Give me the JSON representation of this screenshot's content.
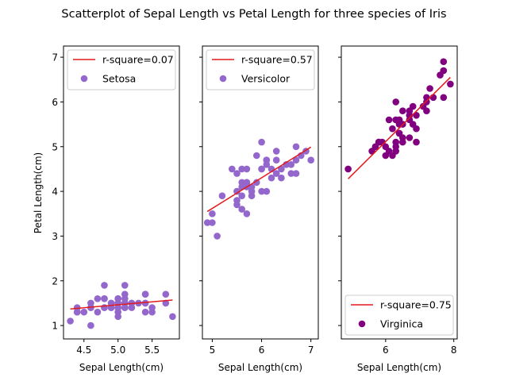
{
  "chart_data": {
    "title": "Scatterplot of Sepal Length vs Petal Length for three species of Iris",
    "type": "scatter",
    "ylabel": "Petal Length(cm)",
    "ylim": [
      0.7,
      7.25
    ],
    "yticks": [
      1,
      2,
      3,
      4,
      5,
      6,
      7
    ],
    "sharey": true,
    "grid": false,
    "panels": [
      {
        "id": "setosa",
        "xlabel": "Sepal Length(cm)",
        "xlim": [
          4.2,
          5.9
        ],
        "xticks": [
          4.5,
          5.0,
          5.5
        ],
        "xtick_labels": [
          "4.5",
          "5.0",
          "5.5"
        ],
        "legend_loc": "upper left",
        "fit_label": "r-square=0.07",
        "fit": {
          "x": [
            4.3,
            5.8
          ],
          "y": [
            1.37,
            1.57
          ]
        },
        "series": {
          "name": "Setosa",
          "color": "#9467cd",
          "x": [
            5.1,
            4.9,
            4.7,
            4.6,
            5.0,
            5.4,
            4.6,
            5.0,
            4.4,
            4.9,
            5.4,
            4.8,
            4.8,
            4.3,
            5.8,
            5.7,
            5.4,
            5.1,
            5.7,
            5.1,
            5.4,
            5.1,
            4.6,
            5.1,
            4.8,
            5.0,
            5.0,
            5.2,
            5.2,
            4.7,
            4.8,
            5.4,
            5.2,
            5.5,
            4.9,
            5.0,
            5.5,
            4.9,
            4.4,
            5.1,
            5.0,
            4.5,
            4.4,
            5.0,
            5.1,
            4.8,
            5.1,
            4.6,
            5.3,
            5.0
          ],
          "y": [
            1.4,
            1.4,
            1.3,
            1.5,
            1.4,
            1.7,
            1.4,
            1.5,
            1.4,
            1.5,
            1.5,
            1.6,
            1.4,
            1.1,
            1.2,
            1.5,
            1.3,
            1.4,
            1.7,
            1.5,
            1.7,
            1.5,
            1.0,
            1.7,
            1.9,
            1.6,
            1.6,
            1.5,
            1.4,
            1.6,
            1.6,
            1.5,
            1.5,
            1.4,
            1.5,
            1.2,
            1.3,
            1.4,
            1.3,
            1.5,
            1.3,
            1.3,
            1.3,
            1.6,
            1.9,
            1.4,
            1.6,
            1.4,
            1.5,
            1.4
          ]
        }
      },
      {
        "id": "versicolor",
        "xlabel": "Sepal Length(cm)",
        "xlim": [
          4.8,
          7.15
        ],
        "xticks": [
          5,
          6,
          7
        ],
        "xtick_labels": [
          "5",
          "6",
          "7"
        ],
        "legend_loc": "upper left",
        "fit_label": "r-square=0.57",
        "fit": {
          "x": [
            4.9,
            7.0
          ],
          "y": [
            3.55,
            4.99
          ]
        },
        "series": {
          "name": "Versicolor",
          "color": "#9467cd",
          "x": [
            7.0,
            6.4,
            6.9,
            5.5,
            6.5,
            5.7,
            6.3,
            4.9,
            6.6,
            5.2,
            5.0,
            5.9,
            6.0,
            6.1,
            5.6,
            6.7,
            5.6,
            5.8,
            6.2,
            5.6,
            5.9,
            6.1,
            6.3,
            6.1,
            6.4,
            6.6,
            6.8,
            6.7,
            6.0,
            5.7,
            5.5,
            5.5,
            5.8,
            6.0,
            5.4,
            6.0,
            6.7,
            6.3,
            5.6,
            5.5,
            5.5,
            6.1,
            5.8,
            5.0,
            5.6,
            5.7,
            5.7,
            6.2,
            5.1,
            5.7
          ],
          "y": [
            4.7,
            4.5,
            4.9,
            4.0,
            4.6,
            4.5,
            4.7,
            3.3,
            4.6,
            3.9,
            3.5,
            4.2,
            4.0,
            4.7,
            3.6,
            4.4,
            4.5,
            4.1,
            4.5,
            3.9,
            4.8,
            4.0,
            4.9,
            4.7,
            4.3,
            4.4,
            4.8,
            5.0,
            4.5,
            3.5,
            3.8,
            3.7,
            3.9,
            5.1,
            4.5,
            4.5,
            4.7,
            4.4,
            4.1,
            4.0,
            4.4,
            4.6,
            4.0,
            3.3,
            4.2,
            4.2,
            4.2,
            4.3,
            3.0,
            4.1
          ]
        }
      },
      {
        "id": "virginica",
        "xlabel": "Sepal Length(cm)",
        "xlim": [
          4.7,
          8.1
        ],
        "xticks": [
          6,
          8
        ],
        "xtick_labels": [
          "6",
          "8"
        ],
        "legend_loc": "lower right",
        "fit_label": "r-square=0.75",
        "fit": {
          "x": [
            4.9,
            7.9
          ],
          "y": [
            4.28,
            6.55
          ]
        },
        "series": {
          "name": "Virginica",
          "color": "#800080",
          "x": [
            6.3,
            5.8,
            7.1,
            6.3,
            6.5,
            7.6,
            4.9,
            7.3,
            6.7,
            7.2,
            6.5,
            6.4,
            6.8,
            5.7,
            5.8,
            6.4,
            6.5,
            7.7,
            7.7,
            6.0,
            6.9,
            5.6,
            7.7,
            6.3,
            6.7,
            7.2,
            6.2,
            6.1,
            6.4,
            7.2,
            7.4,
            7.9,
            6.4,
            6.3,
            6.1,
            7.7,
            6.3,
            6.4,
            6.0,
            6.9,
            6.7,
            6.9,
            5.8,
            6.8,
            6.7,
            6.7,
            6.3,
            6.5,
            6.2,
            5.9
          ],
          "y": [
            6.0,
            5.1,
            5.9,
            5.6,
            5.8,
            6.6,
            4.5,
            6.3,
            5.8,
            6.1,
            5.1,
            5.3,
            5.5,
            5.0,
            5.1,
            5.3,
            5.5,
            6.7,
            6.9,
            5.0,
            5.7,
            4.9,
            6.7,
            4.9,
            5.7,
            6.0,
            4.8,
            4.9,
            5.6,
            5.8,
            6.1,
            6.4,
            5.6,
            5.1,
            5.6,
            6.1,
            5.6,
            5.5,
            4.8,
            5.4,
            5.6,
            5.1,
            5.1,
            5.9,
            5.7,
            5.2,
            5.0,
            5.2,
            5.4,
            5.1
          ]
        }
      }
    ]
  },
  "colors": {
    "fit_line": "#e31a1c",
    "axes": "#000000"
  }
}
